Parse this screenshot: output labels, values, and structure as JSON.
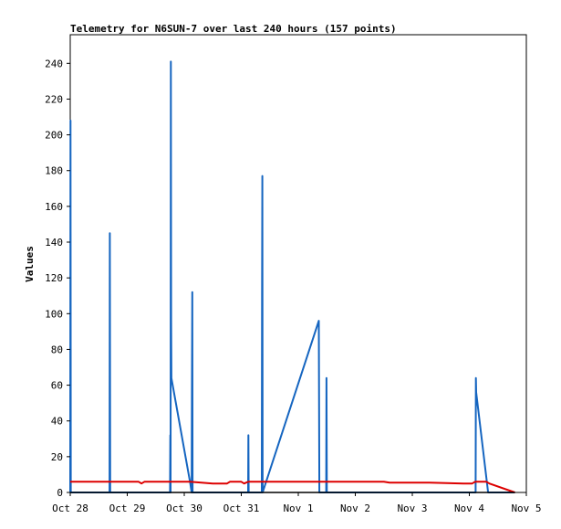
{
  "chart_data": {
    "type": "line",
    "title": "Telemetry for N6SUN-7 over last 240 hours (157 points)",
    "xlabel": "",
    "ylabel": "Values",
    "x_tick_labels": [
      "Oct 28",
      "Oct 29",
      "Oct 30",
      "Oct 31",
      "Nov 1",
      "Nov 2",
      "Nov 3",
      "Nov 4",
      "Nov 5"
    ],
    "y_tick_labels": [
      "0",
      "20",
      "40",
      "60",
      "80",
      "100",
      "120",
      "140",
      "160",
      "180",
      "200",
      "220",
      "240"
    ],
    "xlim": [
      0,
      8
    ],
    "ylim": [
      0,
      256
    ],
    "grid": false,
    "x_unit": "days from Oct 28",
    "series": [
      {
        "color": "#1565c0",
        "points": [
          [
            0.0,
            0
          ],
          [
            0.005,
            208
          ],
          [
            0.01,
            0
          ],
          [
            0.69,
            0
          ],
          [
            0.695,
            145
          ],
          [
            0.7,
            0
          ],
          [
            1.75,
            0
          ],
          [
            1.755,
            32
          ],
          [
            1.76,
            0
          ],
          [
            1.765,
            241
          ],
          [
            1.77,
            96
          ],
          [
            1.775,
            64
          ],
          [
            2.1,
            6
          ],
          [
            2.13,
            0
          ],
          [
            2.135,
            56
          ],
          [
            2.14,
            112
          ],
          [
            2.145,
            0
          ],
          [
            3.12,
            0
          ],
          [
            3.125,
            32
          ],
          [
            3.13,
            0
          ],
          [
            3.36,
            0
          ],
          [
            3.365,
            112
          ],
          [
            3.37,
            177
          ],
          [
            3.375,
            0
          ],
          [
            4.36,
            96
          ],
          [
            4.37,
            0
          ],
          [
            4.49,
            0
          ],
          [
            4.495,
            64
          ],
          [
            4.5,
            0
          ],
          [
            7.11,
            0
          ],
          [
            7.115,
            64
          ],
          [
            7.12,
            56
          ],
          [
            7.33,
            0
          ],
          [
            7.8,
            0
          ]
        ]
      },
      {
        "color": "#dd0000",
        "points": [
          [
            0.0,
            6
          ],
          [
            1.2,
            6
          ],
          [
            1.25,
            5
          ],
          [
            1.3,
            6
          ],
          [
            2.1,
            6
          ],
          [
            2.5,
            5
          ],
          [
            2.75,
            5
          ],
          [
            2.8,
            6
          ],
          [
            3.0,
            6
          ],
          [
            3.05,
            5
          ],
          [
            3.12,
            6
          ],
          [
            5.5,
            6
          ],
          [
            5.6,
            5.5
          ],
          [
            6.3,
            5.5
          ],
          [
            6.9,
            5
          ],
          [
            7.05,
            5
          ],
          [
            7.1,
            6
          ],
          [
            7.3,
            6
          ],
          [
            7.35,
            5
          ],
          [
            7.8,
            0
          ]
        ]
      },
      {
        "color": "#000000",
        "points": [
          [
            0.0,
            0
          ],
          [
            7.8,
            0
          ]
        ]
      }
    ]
  }
}
